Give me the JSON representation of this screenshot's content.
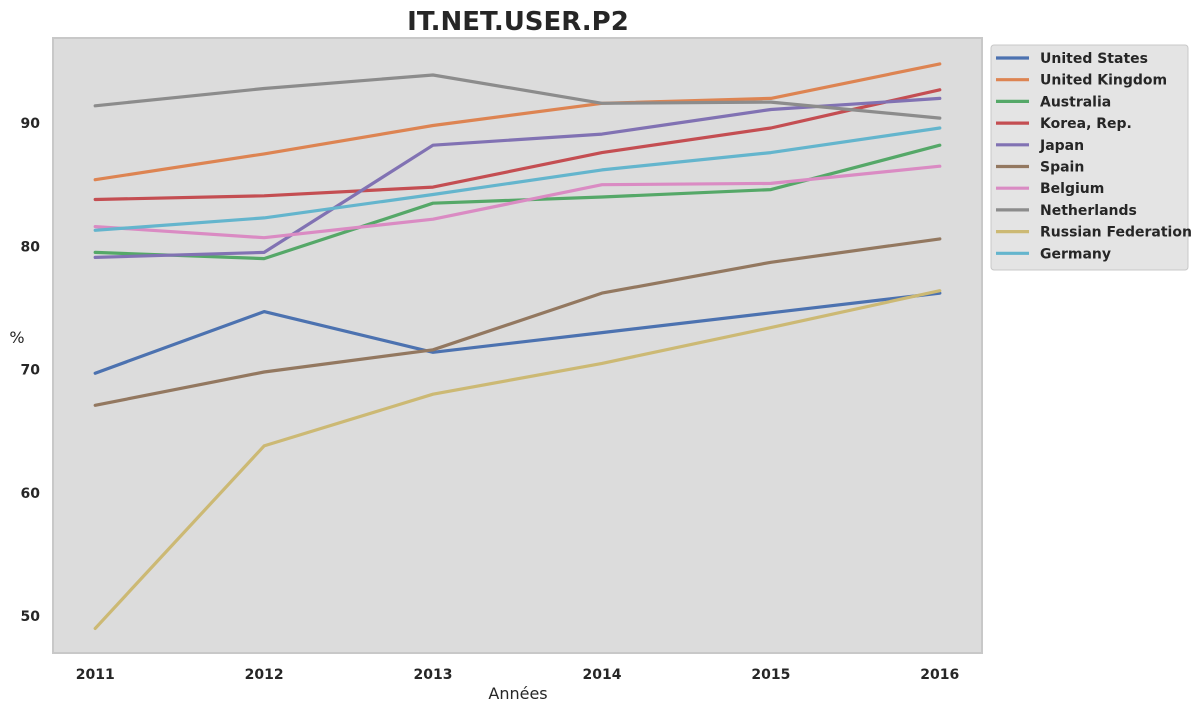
{
  "chart_data": {
    "type": "line",
    "title": "IT.NET.USER.P2",
    "xlabel": "Années",
    "ylabel": "%",
    "x": [
      2011,
      2012,
      2013,
      2014,
      2015,
      2016
    ],
    "x_tick_labels": [
      "2011",
      "2012",
      "2013",
      "2014",
      "2015",
      "2016"
    ],
    "y_ticks": [
      50,
      60,
      70,
      80,
      90
    ],
    "y_tick_labels": [
      "50",
      "60",
      "70",
      "80",
      "90"
    ],
    "ylim": [
      47.0,
      96.9
    ],
    "xlim": [
      2010.75,
      2016.25
    ],
    "grid": false,
    "legend_position": "outside-right-top",
    "colors": {
      "plot_background": "#dcdcdc",
      "frame": "#c8c8c8"
    },
    "series": [
      {
        "name": "United States",
        "color": "#4c72b0",
        "values": [
          69.7,
          74.7,
          71.4,
          73.0,
          74.6,
          76.2
        ]
      },
      {
        "name": "United Kingdom",
        "color": "#dd8452",
        "values": [
          85.4,
          87.5,
          89.8,
          91.6,
          92.0,
          94.8
        ]
      },
      {
        "name": "Australia",
        "color": "#55a868",
        "values": [
          79.5,
          79.0,
          83.5,
          84.0,
          84.6,
          88.2
        ]
      },
      {
        "name": "Korea, Rep.",
        "color": "#c44e52",
        "values": [
          83.8,
          84.1,
          84.8,
          87.6,
          89.6,
          92.7
        ]
      },
      {
        "name": "Japan",
        "color": "#8172b3",
        "values": [
          79.1,
          79.5,
          88.2,
          89.1,
          91.1,
          92.0
        ]
      },
      {
        "name": "Spain",
        "color": "#937860",
        "values": [
          67.1,
          69.8,
          71.6,
          76.2,
          78.7,
          80.6
        ]
      },
      {
        "name": "Belgium",
        "color": "#da8bc3",
        "values": [
          81.6,
          80.7,
          82.2,
          85.0,
          85.1,
          86.5
        ]
      },
      {
        "name": "Netherlands",
        "color": "#8c8c8c",
        "values": [
          91.4,
          92.8,
          93.9,
          91.6,
          91.7,
          90.4
        ]
      },
      {
        "name": "Russian Federation",
        "color": "#ccb974",
        "values": [
          49.0,
          63.8,
          68.0,
          70.5,
          73.4,
          76.4
        ]
      },
      {
        "name": "Germany",
        "color": "#64b5cd",
        "values": [
          81.3,
          82.3,
          84.2,
          86.2,
          87.6,
          89.6
        ]
      }
    ]
  }
}
